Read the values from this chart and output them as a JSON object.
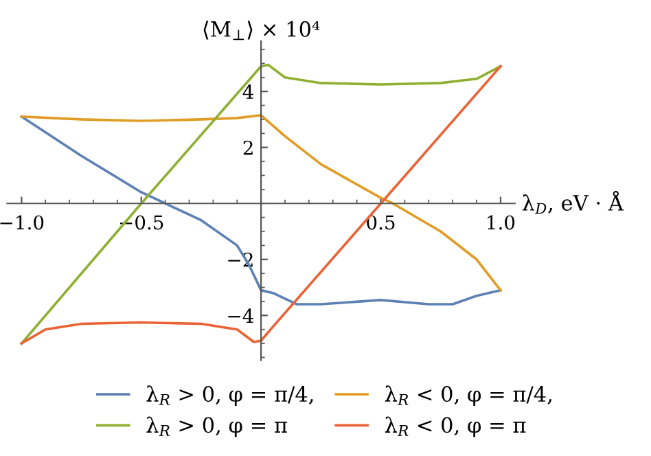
{
  "chart_data": {
    "type": "line",
    "xlabel": "λ$_{D}$, eV · Å",
    "ylabel": "⟨M$_{⊥}$⟩ × 10⁴",
    "xlim": [
      -1.06,
      1.06
    ],
    "ylim": [
      -5.6,
      5.8
    ],
    "xticks": [
      {
        "value": -1.0,
        "label": "−1.0"
      },
      {
        "value": -0.5,
        "label": "−0.5"
      },
      0.5,
      {
        "value": 1.0,
        "label": "1.0"
      }
    ],
    "yticks": [
      {
        "value": -4,
        "label": "−4"
      },
      {
        "value": -2,
        "label": "−2"
      },
      2,
      4
    ],
    "legend": "bottom",
    "grid": false,
    "marker": "none",
    "line_style": "solid",
    "series": [
      {
        "name": "λ$_{R}$ > 0, φ = π/4,",
        "color": "#5e81b5",
        "x": [
          -1,
          -0.75,
          -0.5,
          -0.4,
          -0.25,
          -0.1,
          -0.05,
          0,
          0.05,
          0.15,
          0.25,
          0.5,
          0.7,
          0.8,
          0.9,
          1
        ],
        "values": [
          3.1,
          1.7,
          0.4,
          0,
          -0.6,
          -1.5,
          -2.2,
          -3.1,
          -3.2,
          -3.6,
          -3.6,
          -3.45,
          -3.6,
          -3.6,
          -3.3,
          -3.1
        ]
      },
      {
        "name": "λ$_{R}$ < 0, φ = π/4,",
        "color": "#e19c24",
        "x": [
          -1,
          -0.75,
          -0.5,
          -0.25,
          -0.1,
          0,
          0.1,
          0.25,
          0.5,
          0.55,
          0.75,
          0.9,
          1
        ],
        "values": [
          3.1,
          3.0,
          2.95,
          3.0,
          3.05,
          3.15,
          2.4,
          1.4,
          0.2,
          0,
          -1.0,
          -2.0,
          -3.1
        ]
      },
      {
        "name": "λ$_{R}$ > 0, φ = π",
        "color": "#8fb032",
        "x": [
          -1,
          -0.5,
          0,
          0.03,
          0.1,
          0.25,
          0.5,
          0.75,
          0.9,
          1
        ],
        "values": [
          -5,
          0,
          4.9,
          4.95,
          4.5,
          4.3,
          4.25,
          4.3,
          4.45,
          4.9
        ]
      },
      {
        "name": "λ$_{R}$ < 0, φ = π",
        "color": "#eb6235",
        "x": [
          -1,
          -0.9,
          -0.75,
          -0.5,
          -0.25,
          -0.1,
          -0.03,
          0,
          0.05,
          0.5,
          1
        ],
        "values": [
          -5,
          -4.5,
          -4.3,
          -4.25,
          -4.3,
          -4.5,
          -4.95,
          -4.9,
          -4.4,
          0,
          4.9
        ]
      }
    ]
  }
}
